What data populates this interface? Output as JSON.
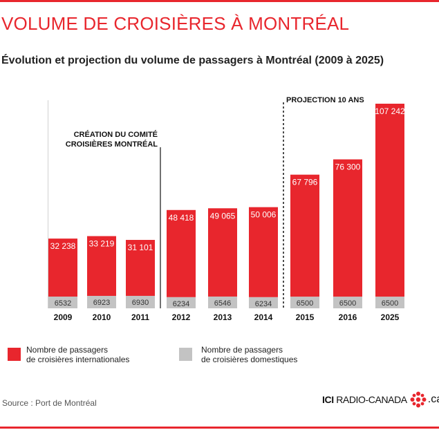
{
  "header": {
    "title": "VOLUME DE CROISIÈRES À MONTRÉAL",
    "subtitle": "Évolution et projection du volume de passagers à Montréal (2009 à 2025)"
  },
  "colors": {
    "accent": "#e8262d",
    "international": "#e8262d",
    "domestic": "#c3c3c3"
  },
  "chart_data": {
    "type": "bar",
    "stacked": true,
    "categories": [
      "2009",
      "2010",
      "2011",
      "2012",
      "2013",
      "2014",
      "2015",
      "2016",
      "2025"
    ],
    "series": [
      {
        "name": "Nombre de passagers de croisières domestiques",
        "values": [
          6532,
          6923,
          6930,
          6234,
          6546,
          6234,
          6500,
          6500,
          6500
        ]
      },
      {
        "name": "Nombre de passagers de croisières internationales",
        "values": [
          32238,
          33219,
          31101,
          48418,
          49065,
          50006,
          67796,
          76300,
          107242
        ]
      }
    ],
    "annotations": [
      {
        "text": "CRÉATION DU COMITÉ\nCROISIÈRES MONTRÉAL",
        "between": [
          "2011",
          "2012"
        ],
        "line": "solid"
      },
      {
        "text": "PROJECTION 10 ANS",
        "between": [
          "2014",
          "2015"
        ],
        "line": "dashed"
      }
    ],
    "legend": "bottom",
    "grid": false
  },
  "legend": {
    "international": "Nombre de passagers\nde croisières internationales",
    "domestic": "Nombre de passagers\nde croisières domestiques"
  },
  "footer": {
    "source": "Source : Port de Montréal",
    "logo_bold": "ICI",
    "logo_text": " RADIO-CANADA",
    "logo_suffix": ".ca"
  }
}
